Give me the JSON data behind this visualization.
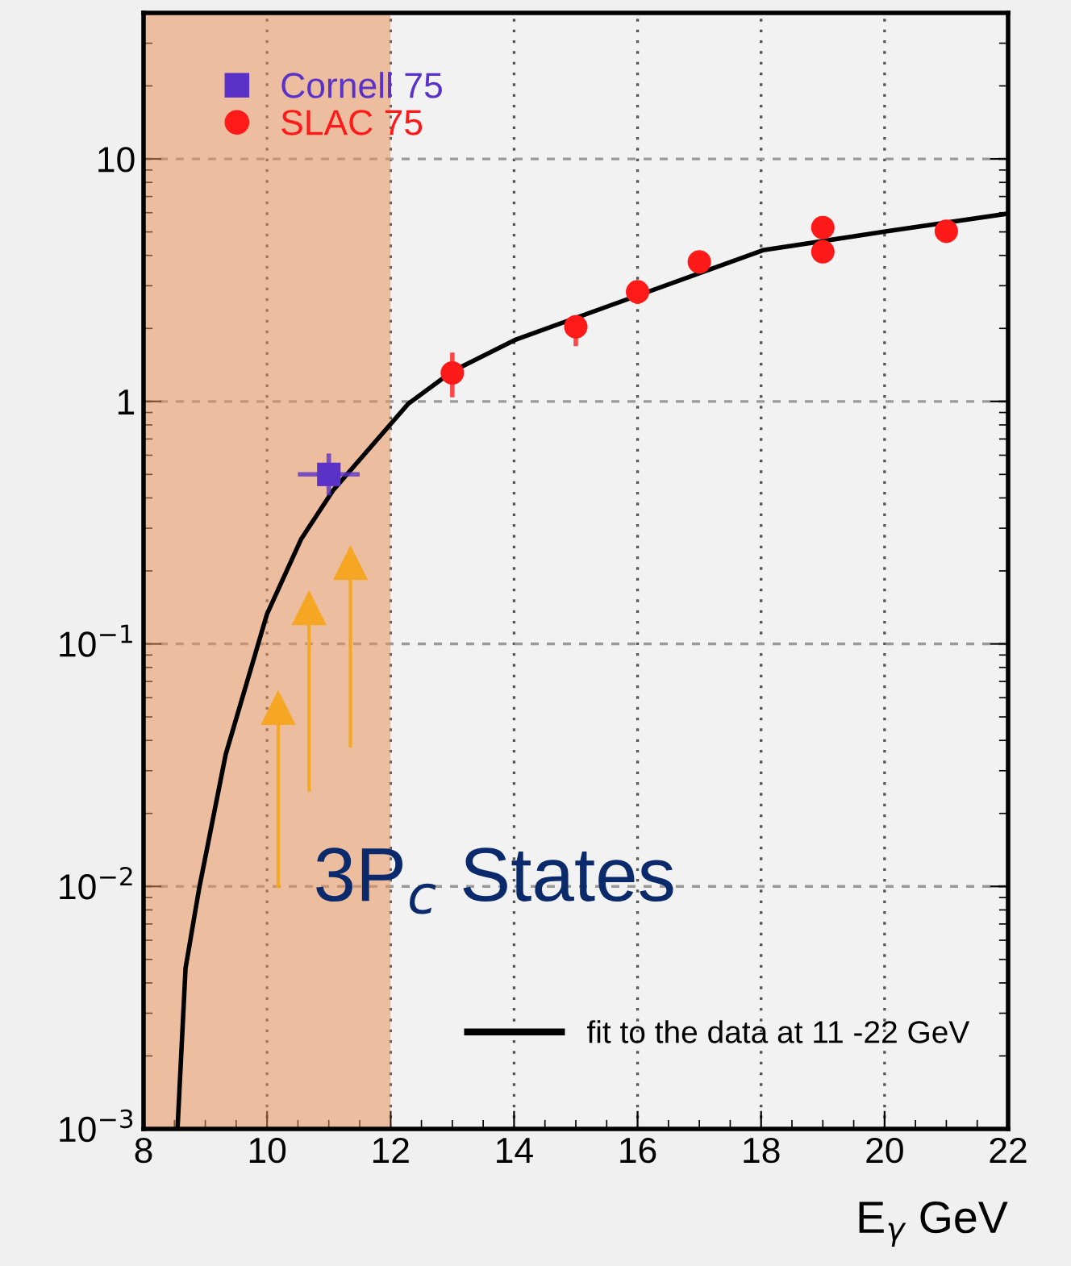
{
  "chart_data": {
    "type": "scatter",
    "xlabel": "E$_{γ}$ GeV",
    "xlim": [
      8,
      22
    ],
    "xticks": [
      8,
      10,
      12,
      14,
      16,
      18,
      20,
      22
    ],
    "ylim": [
      0.001,
      40
    ],
    "log": "y",
    "yticks": [
      {
        "value": 0.001,
        "label": "10$^{−3}$"
      },
      {
        "value": 0.01,
        "label": "10$^{−2}$"
      },
      {
        "value": 0.1,
        "label": "10$^{−1}$"
      },
      {
        "value": 1,
        "label": "1"
      },
      {
        "value": 10,
        "label": "10"
      }
    ],
    "grid": true,
    "legend": "top left",
    "marker": "circle",
    "bands": [
      {
        "axis": "x",
        "from": 8,
        "to": 12,
        "color": "#e9915d"
      }
    ],
    "annotations": [
      "3P$_{c}$ States"
    ],
    "series": [
      {
        "name": "Cornell 75",
        "marker": "square",
        "color": "#5a32c8",
        "x": [
          11
        ],
        "values": [
          0.5
        ],
        "errors": [
          [
            0.41,
            0.61
          ]
        ],
        "xerrors": [
          [
            10.5,
            11.5
          ]
        ]
      },
      {
        "name": "SLAC 75",
        "color": "#ff1a1a",
        "x": [
          13,
          15,
          16,
          17,
          19,
          19,
          21
        ],
        "values": [
          1.31,
          2.03,
          2.83,
          3.76,
          5.21,
          4.14,
          5.03
        ],
        "errors": [
          [
            1.04,
            1.59
          ],
          [
            1.69,
            2.1
          ],
          [
            2.52,
            3.09
          ],
          null,
          null,
          null,
          null
        ]
      },
      {
        "name": "fit to the data at 11 -22 GeV",
        "type": "line",
        "marker": "none",
        "color": "#000000",
        "x": [
          8.55,
          8.68,
          8.9,
          9.33,
          10.0,
          10.55,
          11.07,
          12.29,
          13.0,
          14.03,
          18.03,
          20.04,
          22.0
        ],
        "values": [
          0.001,
          0.0046,
          0.0098,
          0.035,
          0.133,
          0.27,
          0.43,
          0.98,
          1.33,
          1.8,
          4.2,
          5.03,
          5.95
        ]
      }
    ]
  }
}
